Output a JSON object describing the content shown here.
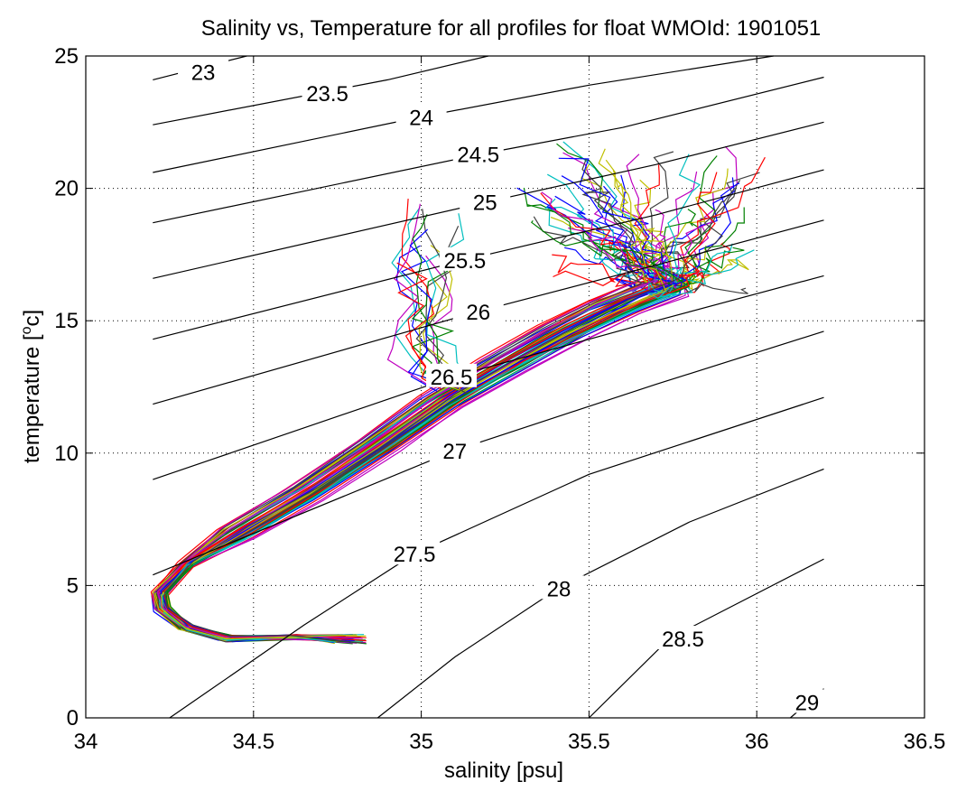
{
  "chart_data": {
    "type": "line",
    "title": "Salinity vs, Temperature for all profiles for float WMOId: 1901051",
    "xlabel": "salinity [psu]",
    "ylabel_main": "temperature [",
    "ylabel_sup": "o",
    "ylabel_tail": "c]",
    "xlim": [
      34,
      36.5
    ],
    "ylim": [
      0,
      25
    ],
    "xticks": [
      34,
      34.5,
      35,
      35.5,
      36,
      36.5
    ],
    "xtick_labels": [
      "34",
      "34.5",
      "35",
      "35.5",
      "36",
      "36.5"
    ],
    "yticks": [
      0,
      5,
      10,
      15,
      20,
      25
    ],
    "ytick_labels": [
      "0",
      "5",
      "10",
      "15",
      "20",
      "25"
    ],
    "grid": true,
    "isopycnals": [
      {
        "sigma": "23",
        "points": [
          [
            34.2,
            24.1
          ],
          [
            34.48,
            25.0
          ]
        ],
        "label_at": [
          34.35,
          24.4
        ]
      },
      {
        "sigma": "23.5",
        "points": [
          [
            34.2,
            22.4
          ],
          [
            34.9,
            24.1
          ],
          [
            35.2,
            25.0
          ]
        ],
        "label_at": [
          34.72,
          23.6
        ]
      },
      {
        "sigma": "24",
        "points": [
          [
            34.2,
            20.6
          ],
          [
            35.0,
            22.7
          ],
          [
            35.5,
            23.9
          ],
          [
            36.05,
            25.0
          ]
        ],
        "label_at": [
          35.0,
          22.7
        ]
      },
      {
        "sigma": "24.5",
        "points": [
          [
            34.2,
            18.7
          ],
          [
            35.18,
            21.3
          ],
          [
            35.6,
            22.3
          ],
          [
            36.2,
            24.2
          ]
        ],
        "label_at": [
          35.17,
          21.3
        ]
      },
      {
        "sigma": "25",
        "points": [
          [
            34.2,
            16.6
          ],
          [
            35.2,
            19.5
          ],
          [
            35.7,
            20.9
          ],
          [
            36.2,
            22.5
          ]
        ],
        "label_at": [
          35.19,
          19.5
        ]
      },
      {
        "sigma": "25.5",
        "points": [
          [
            34.2,
            14.3
          ],
          [
            35.13,
            17.3
          ],
          [
            35.7,
            19.0
          ],
          [
            36.2,
            20.7
          ]
        ],
        "label_at": [
          35.13,
          17.3
        ]
      },
      {
        "sigma": "26",
        "points": [
          [
            34.2,
            11.85
          ],
          [
            35.17,
            15.35
          ],
          [
            35.7,
            17.1
          ],
          [
            36.2,
            18.8
          ]
        ],
        "label_at": [
          35.17,
          15.35
        ]
      },
      {
        "sigma": "26.5",
        "points": [
          [
            34.2,
            9.0
          ],
          [
            35.1,
            12.9
          ],
          [
            35.7,
            15.0
          ],
          [
            36.2,
            16.7
          ]
        ],
        "label_at": [
          35.09,
          12.9
        ]
      },
      {
        "sigma": "27",
        "points": [
          [
            34.2,
            5.4
          ],
          [
            35.1,
            10.1
          ],
          [
            35.7,
            12.6
          ],
          [
            36.2,
            14.6
          ]
        ],
        "label_at": [
          35.1,
          10.1
        ]
      },
      {
        "sigma": "27.5",
        "points": [
          [
            34.25,
            0.0
          ],
          [
            34.65,
            3.5
          ],
          [
            34.98,
            6.2
          ],
          [
            35.5,
            9.2
          ],
          [
            36.2,
            12.1
          ]
        ],
        "label_at": [
          34.98,
          6.2
        ]
      },
      {
        "sigma": "28",
        "points": [
          [
            34.87,
            0.0
          ],
          [
            35.1,
            2.3
          ],
          [
            35.41,
            4.9
          ],
          [
            35.8,
            7.4
          ],
          [
            36.2,
            9.4
          ]
        ],
        "label_at": [
          35.41,
          4.9
        ]
      },
      {
        "sigma": "28.5",
        "points": [
          [
            35.5,
            0.0
          ],
          [
            35.74,
            3.0
          ],
          [
            36.2,
            6.0
          ]
        ],
        "label_at": [
          35.78,
          3.0
        ]
      },
      {
        "sigma": "29",
        "points": [
          [
            36.1,
            0.0
          ],
          [
            36.2,
            1.1
          ]
        ],
        "label_at": [
          36.15,
          0.6
        ]
      }
    ],
    "series_note": "Many profiles (about 70) of a single float, each drawn in a rotating color palette",
    "profile_count": 70,
    "profile_colors": [
      "#0000ff",
      "#008000",
      "#ff0000",
      "#00bfbf",
      "#bf00bf",
      "#bfbf00",
      "#404040"
    ],
    "envelope": {
      "deep_end": [
        [
          34.82,
          2.8
        ],
        [
          34.78,
          2.8
        ],
        [
          34.72,
          2.9
        ]
      ],
      "spine": [
        [
          34.42,
          3.0
        ],
        [
          34.3,
          3.4
        ],
        [
          34.23,
          4.1
        ],
        [
          34.22,
          4.7
        ],
        [
          34.3,
          5.8
        ],
        [
          34.45,
          7.0
        ],
        [
          34.65,
          8.5
        ],
        [
          34.87,
          10.3
        ],
        [
          35.06,
          12.0
        ],
        [
          35.25,
          13.4
        ],
        [
          35.42,
          14.6
        ],
        [
          35.58,
          15.6
        ],
        [
          35.72,
          16.3
        ]
      ],
      "spread_salinity": 0.035,
      "spread_temperature": 0.25
    }
  }
}
